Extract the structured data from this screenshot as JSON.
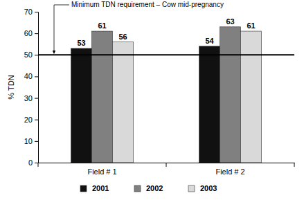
{
  "chart_data": {
    "type": "bar",
    "y_label": "% TDN",
    "categories": [
      "Field # 1",
      "Field # 2"
    ],
    "series": [
      {
        "name": "2001",
        "color": "#111111",
        "values": [
          53,
          54
        ]
      },
      {
        "name": "2002",
        "color": "#808080",
        "values": [
          61,
          63
        ]
      },
      {
        "name": "2003",
        "color": "#d9d9d9",
        "values": [
          56,
          61
        ]
      }
    ],
    "ylim": [
      0,
      70
    ],
    "yticks": [
      0,
      10,
      20,
      30,
      40,
      50,
      60,
      70
    ],
    "grid": false,
    "data_labels": true,
    "legend": "bottom",
    "annotations": [
      {
        "text": "Minimum TDN requirement – Cow mid-pregnancy",
        "y": 50
      }
    ]
  }
}
